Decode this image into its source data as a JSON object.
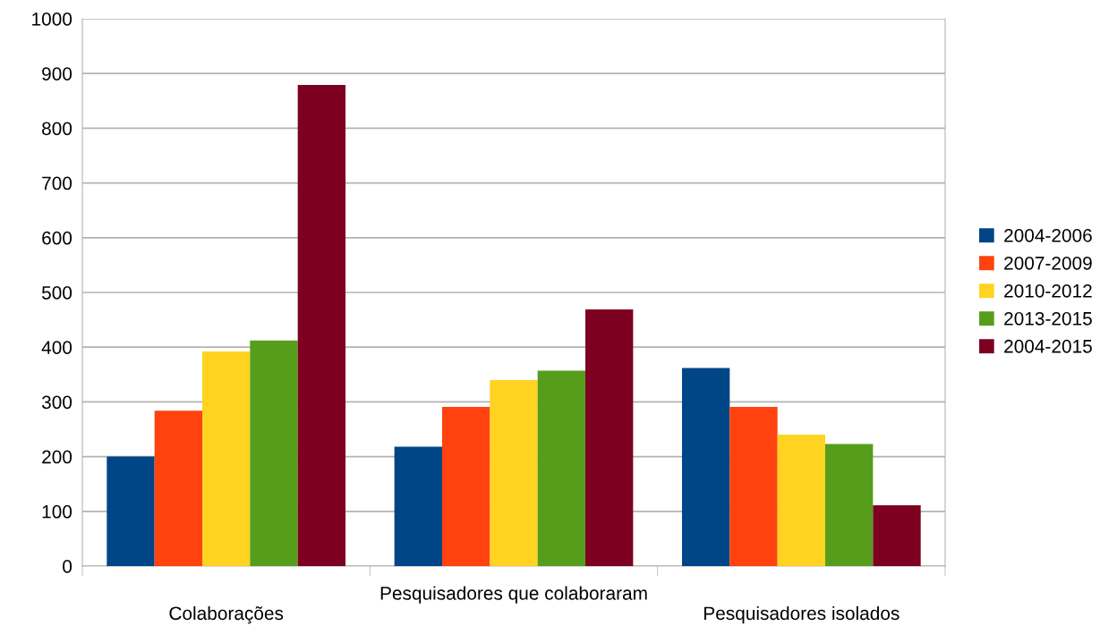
{
  "chart_data": {
    "type": "bar",
    "categories": [
      "Colaborações",
      "Pesquisadores que colaboraram",
      "Pesquisadores isolados"
    ],
    "series": [
      {
        "name": "2004-2006",
        "color": "#004586",
        "values": [
          200,
          218,
          362
        ]
      },
      {
        "name": "2007-2009",
        "color": "#ff420e",
        "values": [
          284,
          291,
          291
        ]
      },
      {
        "name": "2010-2012",
        "color": "#ffd320",
        "values": [
          392,
          340,
          240
        ]
      },
      {
        "name": "2013-2015",
        "color": "#579d1c",
        "values": [
          412,
          357,
          223
        ]
      },
      {
        "name": "2004-2015",
        "color": "#7e0021",
        "values": [
          879,
          469,
          111
        ]
      }
    ],
    "ylim": [
      0,
      1000
    ],
    "yticks": [
      0,
      100,
      200,
      300,
      400,
      500,
      600,
      700,
      800,
      900,
      1000
    ],
    "grid": "y",
    "legend": "right"
  }
}
